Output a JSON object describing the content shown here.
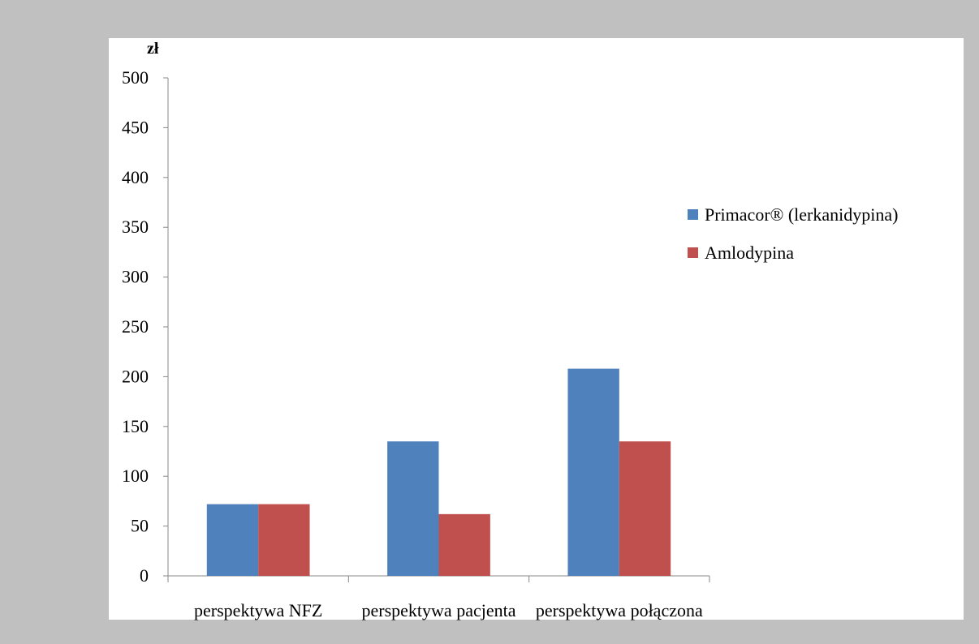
{
  "chart_data": {
    "type": "bar",
    "unit_label": "zł",
    "categories": [
      "perspektywa NFZ",
      "perspektywa pacjenta",
      "perspektywa połączona"
    ],
    "series": [
      {
        "name": "Primacor® (lerkanidypina)",
        "color": "#4f81bd",
        "values": [
          72,
          135,
          208
        ]
      },
      {
        "name": "Amlodypina",
        "color": "#c0504d",
        "values": [
          72,
          62,
          135
        ]
      }
    ],
    "ylim": [
      0,
      500
    ],
    "yticks": [
      0,
      50,
      100,
      150,
      200,
      250,
      300,
      350,
      400,
      450,
      500
    ],
    "grid": false,
    "legend_position": "right"
  }
}
